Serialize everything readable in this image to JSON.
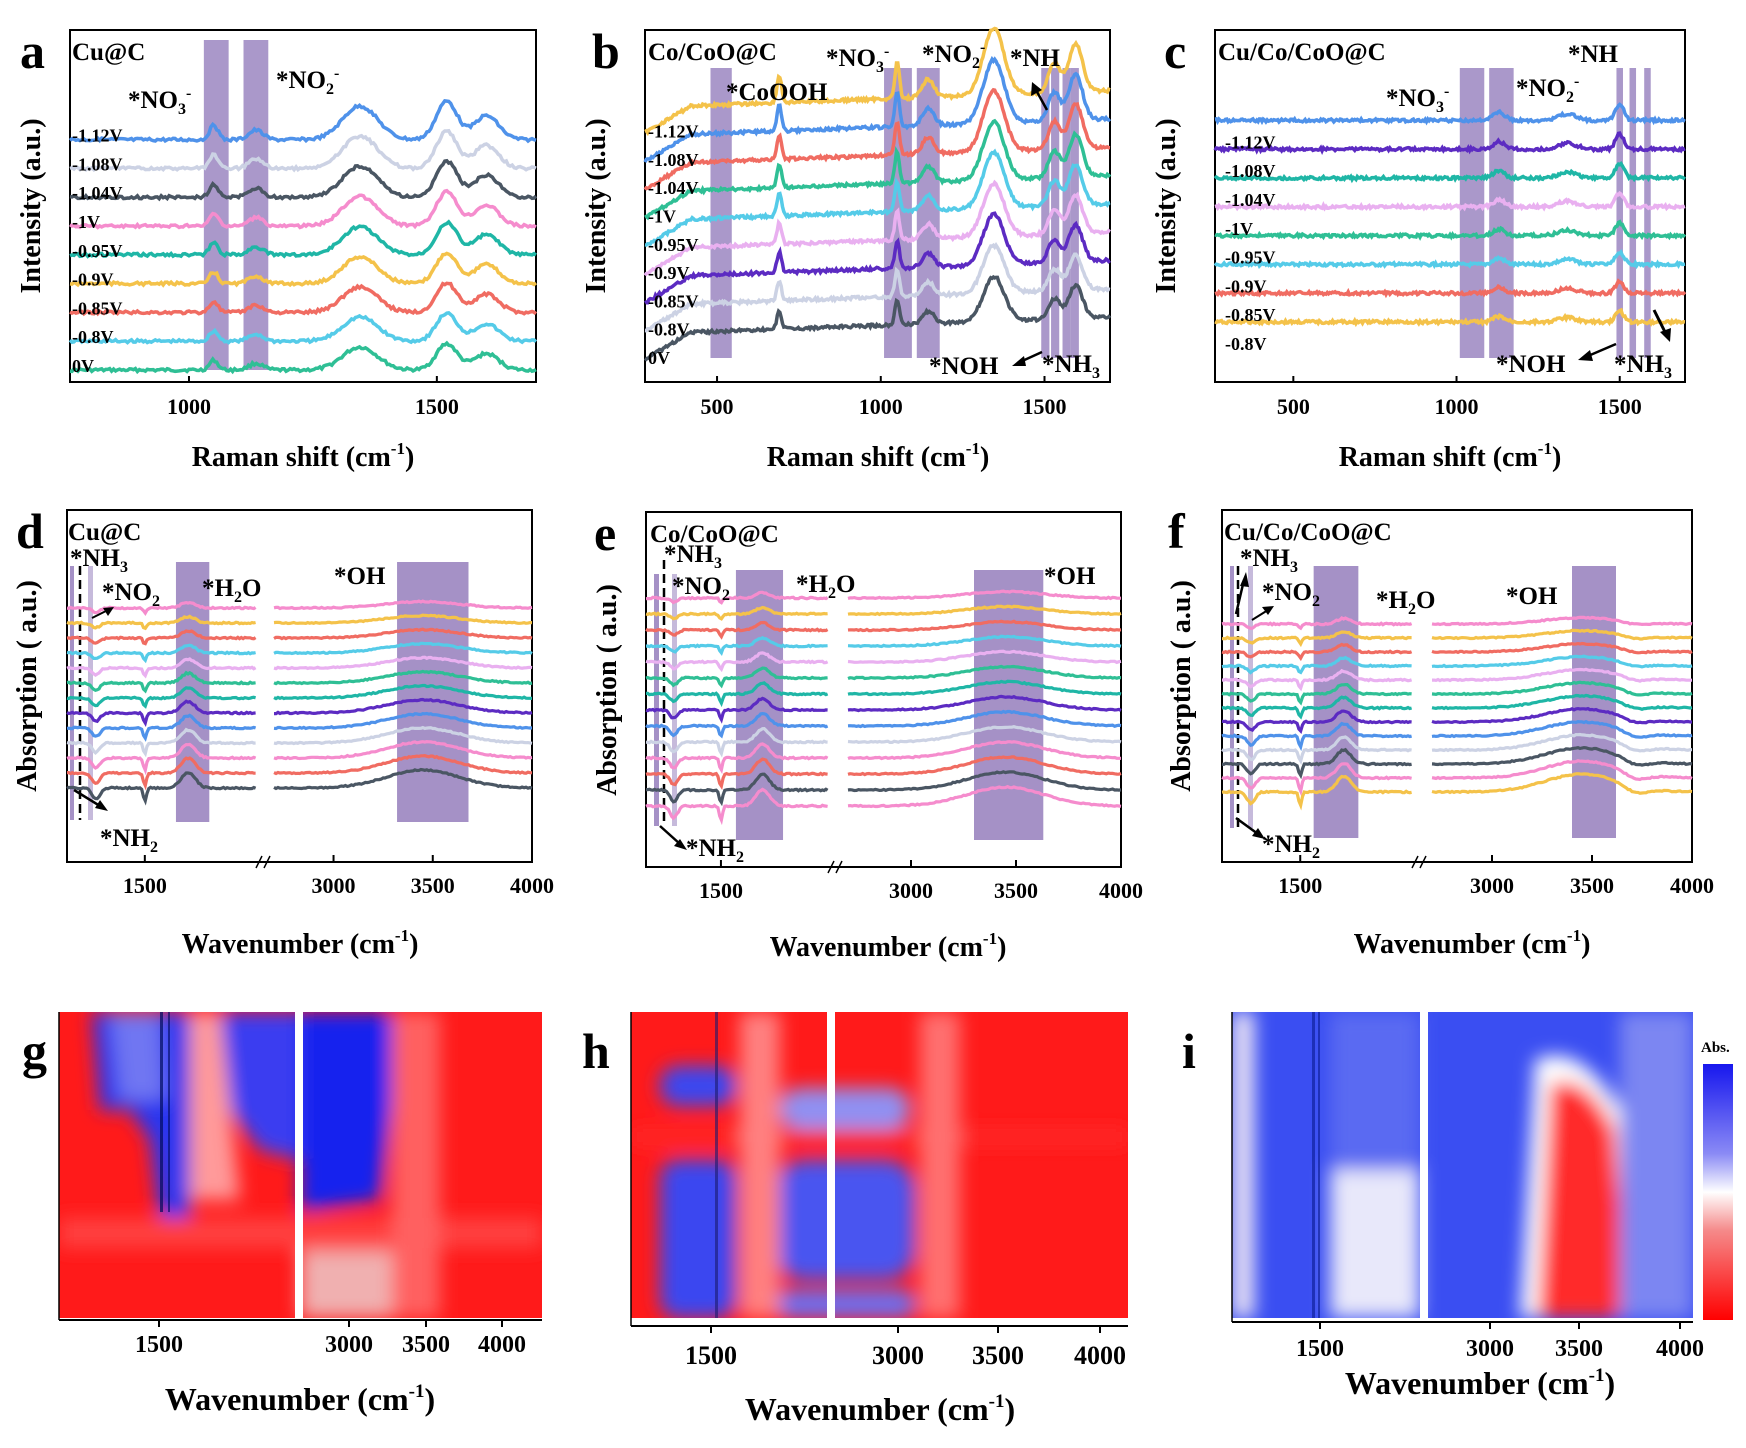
{
  "colors": {
    "trace": [
      "#2fbf95",
      "#e9b0f0",
      "#55cbe8",
      "#f06c62",
      "#f4c24a",
      "#1fb6a6",
      "#f58ccd",
      "#4a5663",
      "#ccd2e4",
      "#4f92ea",
      "#5c2bc2"
    ],
    "band": "#8e76b8",
    "heat_red": "#ff0000",
    "heat_blue": "#1717ee"
  },
  "chart_data": [
    {
      "id": "a",
      "type": "line",
      "title": "Cu@C",
      "xlabel_main": "Raman shift (cm",
      "xlabel_sup": "-1",
      "xlabel_end": ")",
      "ylabel": "Intensity (a.u.)",
      "xlim": [
        760,
        1700
      ],
      "xticks": [
        1000,
        1500
      ],
      "xtick_labels": [
        "1000",
        "1500"
      ],
      "potentials": [
        "0V",
        "-0.8V",
        "-0.85V",
        "-0.9V",
        "-0.95V",
        "-1V",
        "-1.04V",
        "-1.08V",
        "-1.12V"
      ],
      "bands": [
        [
          1030,
          1080
        ],
        [
          1110,
          1160
        ]
      ],
      "annotations": [
        {
          "label": "*NO3",
          "sub": "3",
          "sup": "-",
          "x": 1050
        },
        {
          "label": "*NO2",
          "sub": "2",
          "sup": "-",
          "x": 1200
        }
      ],
      "peaks": [
        [
          1050,
          12,
          0.6
        ],
        [
          1135,
          20,
          0.4
        ],
        [
          1345,
          50,
          1.4
        ],
        [
          1520,
          30,
          1.6
        ],
        [
          1600,
          35,
          1.0
        ]
      ]
    },
    {
      "id": "b",
      "type": "line",
      "title": "Co/CoO@C",
      "xlabel_main": "Raman shift (cm",
      "xlabel_sup": "-1",
      "xlabel_end": ")",
      "ylabel": "Intensity (a.u.)",
      "xlim": [
        280,
        1700
      ],
      "xticks": [
        500,
        1000,
        1500
      ],
      "xtick_labels": [
        "500",
        "1000",
        "1500"
      ],
      "potentials": [
        "0V",
        "-0.8V",
        "-0.85V",
        "-0.9V",
        "-0.95V",
        "-1V",
        "-1.04V",
        "-1.08V",
        "-1.12V"
      ],
      "bands": [
        [
          480,
          545
        ],
        [
          1010,
          1095
        ],
        [
          1110,
          1180
        ],
        [
          1490,
          1515
        ],
        [
          1520,
          1545
        ],
        [
          1555,
          1580
        ],
        [
          1580,
          1605
        ]
      ],
      "annotations": [
        {
          "label": "*CoOOH"
        },
        {
          "label": "*NO3",
          "sub": "3",
          "sup": "-"
        },
        {
          "label": "*NO2",
          "sub": "2",
          "sup": "-"
        },
        {
          "label": "*NH"
        },
        {
          "label": "*NOH"
        },
        {
          "label": "*NH3",
          "sub": "3"
        }
      ],
      "peaks": [
        [
          690,
          10,
          0.9
        ],
        [
          1050,
          10,
          1.2
        ],
        [
          1145,
          25,
          0.6
        ],
        [
          1345,
          45,
          2.2
        ],
        [
          1530,
          25,
          1.0
        ],
        [
          1595,
          30,
          1.6
        ]
      ]
    },
    {
      "id": "c",
      "type": "line",
      "title": "Cu/Co/CoO@C",
      "xlabel_main": "Raman shift (cm",
      "xlabel_sup": "-1",
      "xlabel_end": ")",
      "ylabel": "Intensity (a.u.)",
      "xlim": [
        260,
        1700
      ],
      "xticks": [
        500,
        1000,
        1500
      ],
      "xtick_labels": [
        "500",
        "1000",
        "1500"
      ],
      "potentials": [
        "-0.8V",
        "-0.85V",
        "-0.9V",
        "-0.95V",
        "-1V",
        "-1.04V",
        "-1.08V",
        "-1.12V"
      ],
      "bands": [
        [
          1010,
          1085
        ],
        [
          1100,
          1175
        ],
        [
          1490,
          1510
        ],
        [
          1530,
          1550
        ],
        [
          1575,
          1595
        ]
      ],
      "annotations": [
        {
          "label": "*NO3",
          "sub": "3",
          "sup": "-"
        },
        {
          "label": "*NO2",
          "sub": "2",
          "sup": "-"
        },
        {
          "label": "*NH"
        },
        {
          "label": "*NOH"
        },
        {
          "label": "*NH3",
          "sub": "3"
        }
      ],
      "peaks": [
        [
          1130,
          25,
          0.5
        ],
        [
          1340,
          40,
          0.4
        ],
        [
          1500,
          18,
          1.0
        ]
      ]
    },
    {
      "id": "d",
      "type": "line",
      "title": "Cu@C",
      "xlabel_main": "Wavenumber (cm",
      "xlabel_sup": "-1",
      "xlabel_end": ")",
      "ylabel": "Absorption ( a.u.)",
      "xlim": [
        1150,
        4000
      ],
      "axis_break": [
        2000,
        2700
      ],
      "xticks": [
        1500,
        3000,
        3500,
        4000
      ],
      "xtick_labels": [
        "1500",
        "3000",
        "3500",
        "4000"
      ],
      "bands": [
        [
          1640,
          1790
        ],
        [
          3320,
          3680
        ]
      ],
      "annotations": [
        {
          "label": "*NH3",
          "sub": "3"
        },
        {
          "label": "*NO2",
          "sub": "2"
        },
        {
          "label": "*H2O",
          "sub": "2"
        },
        {
          "label": "*OH"
        },
        {
          "label": "*NH2",
          "sub": "2"
        }
      ]
    },
    {
      "id": "e",
      "type": "line",
      "title": "Co/CoO@C",
      "xlabel_main": "Wavenumber (cm",
      "xlabel_sup": "-1",
      "xlabel_end": ")",
      "ylabel": "Absorption ( a.u.)",
      "xlim": [
        1150,
        4000
      ],
      "axis_break": [
        2000,
        2700
      ],
      "xticks": [
        1500,
        3000,
        3500,
        4000
      ],
      "xtick_labels": [
        "1500",
        "3000",
        "3500",
        "4000"
      ],
      "bands": [
        [
          1570,
          1790
        ],
        [
          3300,
          3630
        ]
      ],
      "annotations": [
        {
          "label": "*NH3",
          "sub": "3"
        },
        {
          "label": "*NO2",
          "sub": "2"
        },
        {
          "label": "*H2O",
          "sub": "2"
        },
        {
          "label": "*OH"
        },
        {
          "label": "*NH2",
          "sub": "2"
        }
      ]
    },
    {
      "id": "f",
      "type": "line",
      "title": "Cu/Co/CoO@C",
      "xlabel_main": "Wavenumber (cm",
      "xlabel_sup": "-1",
      "xlabel_end": ")",
      "ylabel": "Absorption ( a.u.)",
      "xlim": [
        1150,
        4000
      ],
      "axis_break": [
        2000,
        2700
      ],
      "xticks": [
        1500,
        3000,
        3500,
        4000
      ],
      "xtick_labels": [
        "1500",
        "3000",
        "3500",
        "4000"
      ],
      "bands": [
        [
          1560,
          1760
        ],
        [
          3400,
          3620
        ]
      ],
      "annotations": [
        {
          "label": "*NH3",
          "sub": "3"
        },
        {
          "label": "*NO2",
          "sub": "2"
        },
        {
          "label": "*H2O",
          "sub": "2"
        },
        {
          "label": "*OH"
        },
        {
          "label": "*NH2",
          "sub": "2"
        }
      ]
    },
    {
      "id": "g",
      "type": "heatmap",
      "xlabel_main": "Wavenumber (cm",
      "xlabel_sup": "-1",
      "xlabel_end": ")",
      "xticks": [
        1500,
        3000,
        3500,
        4000
      ],
      "xtick_labels": [
        "1500",
        "3000",
        "3500",
        "4000"
      ]
    },
    {
      "id": "h",
      "type": "heatmap",
      "xlabel_main": "Wavenumber (cm",
      "xlabel_sup": "-1",
      "xlabel_end": ")",
      "xticks": [
        1500,
        3000,
        3500,
        4000
      ],
      "xtick_labels": [
        "1500",
        "3000",
        "3500",
        "4000"
      ]
    },
    {
      "id": "i",
      "type": "heatmap",
      "xlabel_main": "Wavenumber (cm",
      "xlabel_sup": "-1",
      "xlabel_end": ")",
      "xticks": [
        1500,
        3000,
        3500,
        4000
      ],
      "xtick_labels": [
        "1500",
        "3000",
        "3500",
        "4000"
      ],
      "colorbar_label": "Abs."
    }
  ]
}
